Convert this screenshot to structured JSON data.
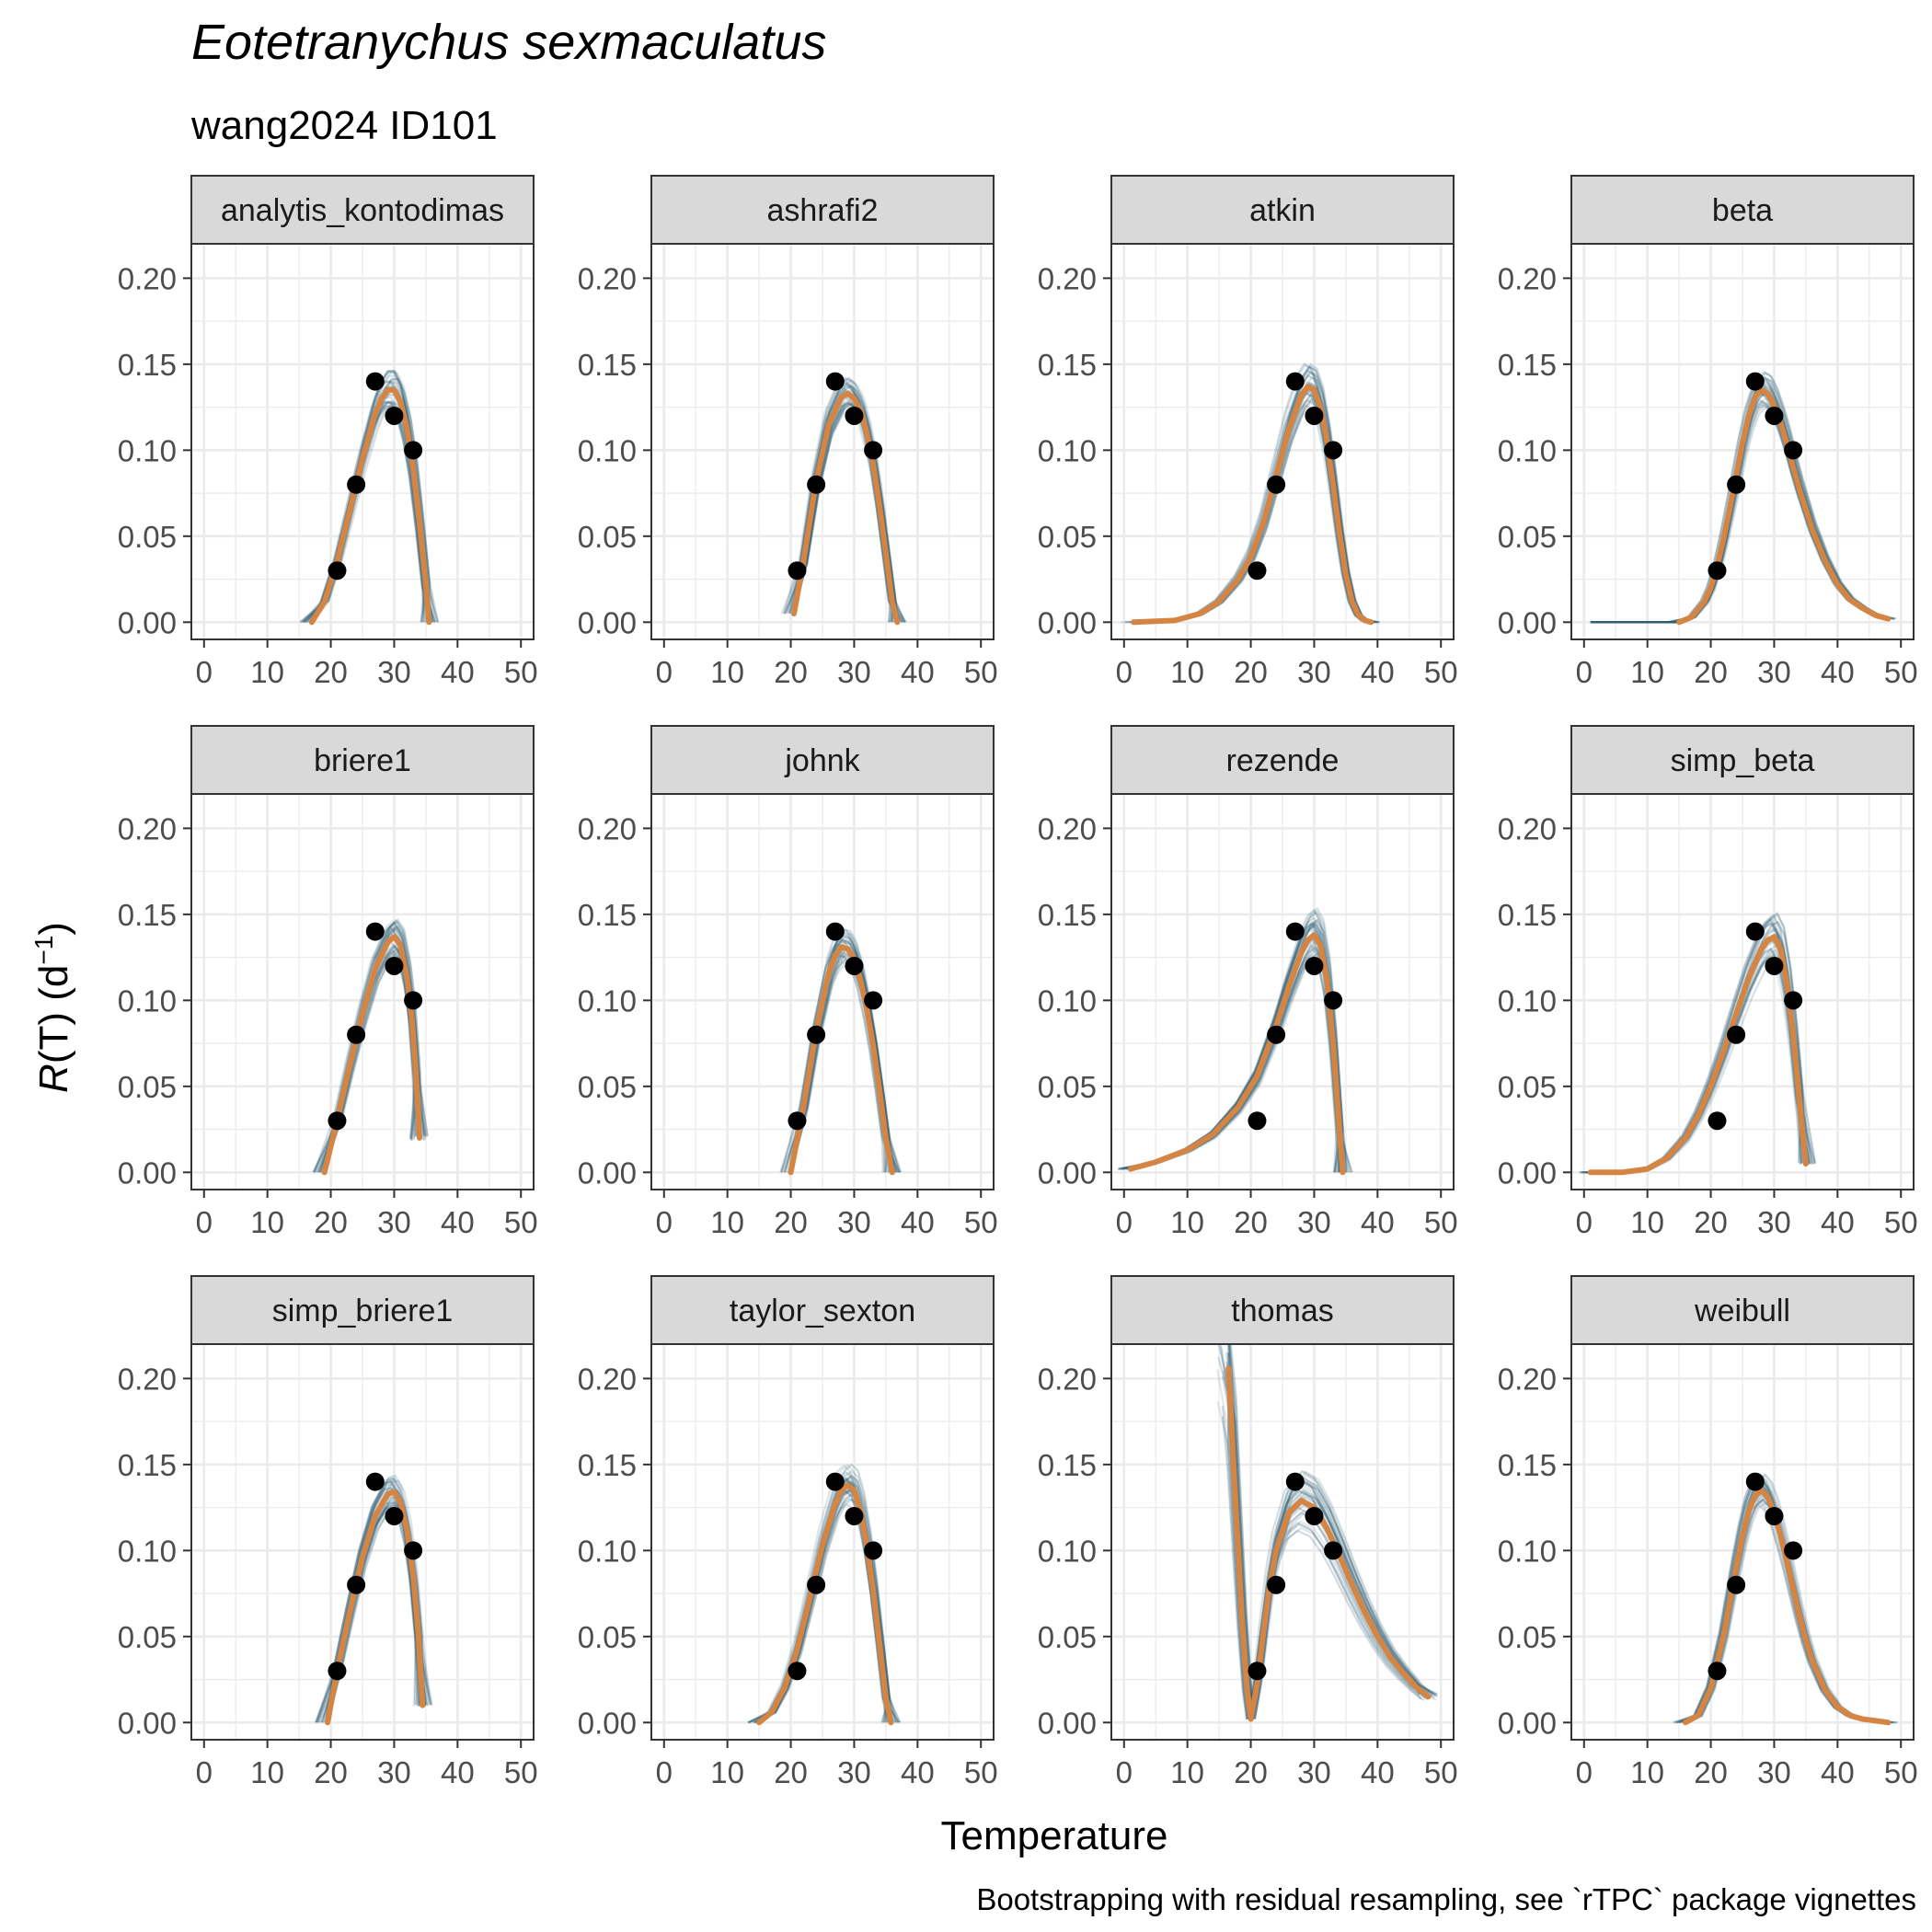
{
  "title": "Eotetranychus sexmaculatus",
  "subtitle": "wang2024 ID101",
  "caption": "Bootstrapping with residual resampling, see `rTPC` package vignettes",
  "colors": {
    "fit_line": "#D58442",
    "bootstrap_lines": "#2F5E73",
    "points": "#000000",
    "strip_background": "#D9D9D9",
    "grid": "#EBEBEB"
  },
  "chart_data": {
    "type": "line",
    "facet_layout": "4 columns x 3 rows",
    "xlabel": "Temperature",
    "ylabel": {
      "italic": "R",
      "text": "(T) (d",
      "superscript": "−1",
      "suffix": ")"
    },
    "xlim": [
      -2,
      52
    ],
    "ylim": [
      -0.01,
      0.22
    ],
    "x_ticks": [
      "0",
      "10",
      "20",
      "30",
      "40",
      "50"
    ],
    "y_ticks": [
      "0.00",
      "0.05",
      "0.10",
      "0.15",
      "0.20"
    ],
    "observed": {
      "x": [
        21,
        24,
        27,
        30,
        33
      ],
      "y": [
        0.03,
        0.08,
        0.14,
        0.12,
        0.1
      ]
    },
    "panels": [
      {
        "name": "analytis_kontodimas",
        "fit": {
          "x": [
            17,
            19,
            21,
            23,
            25,
            27,
            28,
            29,
            30,
            31,
            32,
            33,
            34,
            35,
            35.5
          ],
          "y": [
            0.0,
            0.012,
            0.035,
            0.065,
            0.095,
            0.121,
            0.13,
            0.135,
            0.135,
            0.128,
            0.113,
            0.09,
            0.058,
            0.022,
            0.0
          ]
        },
        "bootstrap_spread": 0.012
      },
      {
        "name": "ashrafi2",
        "fit": {
          "x": [
            20.5,
            22,
            24,
            26,
            28,
            29,
            30,
            31,
            32,
            33,
            34,
            35,
            36,
            36.8
          ],
          "y": [
            0.005,
            0.035,
            0.082,
            0.115,
            0.131,
            0.133,
            0.13,
            0.123,
            0.11,
            0.092,
            0.068,
            0.04,
            0.012,
            0.0
          ]
        },
        "bootstrap_spread": 0.01
      },
      {
        "name": "atkin",
        "fit": {
          "x": [
            1.5,
            8,
            12,
            15,
            18,
            20,
            22,
            24,
            26,
            28,
            29,
            30,
            31,
            32,
            33,
            34,
            35,
            36,
            37,
            38,
            39
          ],
          "y": [
            0.0,
            0.001,
            0.005,
            0.012,
            0.025,
            0.038,
            0.058,
            0.085,
            0.112,
            0.132,
            0.137,
            0.135,
            0.125,
            0.106,
            0.08,
            0.052,
            0.028,
            0.012,
            0.004,
            0.001,
            0.0
          ]
        },
        "bootstrap_spread": 0.014
      },
      {
        "name": "beta",
        "fit": {
          "x": [
            15,
            17,
            19,
            20,
            21,
            22,
            23,
            24,
            25,
            26,
            27,
            28,
            29,
            30,
            31,
            32,
            33,
            34,
            36,
            38,
            40,
            42,
            44,
            46,
            48
          ],
          "y": [
            0.0,
            0.003,
            0.012,
            0.02,
            0.032,
            0.048,
            0.066,
            0.085,
            0.104,
            0.12,
            0.131,
            0.135,
            0.133,
            0.126,
            0.116,
            0.104,
            0.09,
            0.077,
            0.054,
            0.036,
            0.022,
            0.013,
            0.008,
            0.004,
            0.002
          ]
        },
        "flat_start": 1,
        "bootstrap_spread": 0.012
      },
      {
        "name": "briere1",
        "fit": {
          "x": [
            19,
            21,
            23,
            25,
            27,
            29,
            30,
            31,
            32,
            32.8,
            33.5,
            34
          ],
          "y": [
            0.0,
            0.03,
            0.062,
            0.092,
            0.118,
            0.134,
            0.137,
            0.132,
            0.114,
            0.09,
            0.055,
            0.02
          ]
        },
        "bootstrap_spread": 0.012
      },
      {
        "name": "johnk",
        "fit": {
          "x": [
            20,
            22,
            24,
            26,
            27,
            28,
            29,
            30,
            31,
            32,
            33,
            34,
            35,
            36
          ],
          "y": [
            0.0,
            0.038,
            0.082,
            0.116,
            0.126,
            0.131,
            0.13,
            0.124,
            0.112,
            0.095,
            0.074,
            0.048,
            0.02,
            0.0
          ]
        },
        "bootstrap_spread": 0.012
      },
      {
        "name": "rezende",
        "fit": {
          "x": [
            1,
            5,
            10,
            14,
            18,
            21,
            24,
            26,
            28,
            29,
            30,
            31,
            32,
            33,
            34,
            34.5
          ],
          "y": [
            0.002,
            0.006,
            0.013,
            0.022,
            0.038,
            0.056,
            0.085,
            0.108,
            0.128,
            0.135,
            0.138,
            0.132,
            0.112,
            0.075,
            0.025,
            0.0
          ]
        },
        "bootstrap_spread": 0.016
      },
      {
        "name": "simp_beta",
        "fit": {
          "x": [
            1,
            6,
            10,
            13,
            16,
            18,
            20,
            22,
            24,
            26,
            28,
            29,
            30,
            31,
            32,
            33,
            34,
            35
          ],
          "y": [
            0.0,
            0.0,
            0.002,
            0.008,
            0.02,
            0.033,
            0.05,
            0.07,
            0.092,
            0.113,
            0.13,
            0.135,
            0.137,
            0.13,
            0.11,
            0.08,
            0.042,
            0.005
          ]
        },
        "bootstrap_spread": 0.015
      },
      {
        "name": "simp_briere1",
        "fit": {
          "x": [
            19.5,
            21,
            23,
            25,
            27,
            29,
            30,
            31,
            32,
            33,
            33.8,
            34.5
          ],
          "y": [
            0.0,
            0.03,
            0.064,
            0.096,
            0.12,
            0.133,
            0.134,
            0.128,
            0.112,
            0.085,
            0.052,
            0.01
          ]
        },
        "bootstrap_spread": 0.011
      },
      {
        "name": "taylor_sexton",
        "fit": {
          "x": [
            15,
            17,
            19,
            21,
            23,
            25,
            27,
            28,
            29,
            30,
            31,
            32,
            33,
            34,
            35,
            35.8
          ],
          "y": [
            0.0,
            0.006,
            0.02,
            0.042,
            0.072,
            0.103,
            0.127,
            0.135,
            0.138,
            0.135,
            0.123,
            0.103,
            0.077,
            0.046,
            0.014,
            0.0
          ]
        },
        "bootstrap_spread": 0.013
      },
      {
        "name": "thomas",
        "fit": {
          "x": [
            16.5,
            17,
            17.8,
            18.6,
            19.4,
            20,
            21,
            22,
            23,
            24,
            26,
            28,
            30,
            32,
            34,
            36,
            38,
            40,
            42,
            44,
            46,
            48
          ],
          "y": [
            0.206,
            0.17,
            0.115,
            0.062,
            0.02,
            0.002,
            0.022,
            0.052,
            0.08,
            0.1,
            0.122,
            0.129,
            0.125,
            0.113,
            0.097,
            0.08,
            0.064,
            0.05,
            0.038,
            0.029,
            0.021,
            0.015
          ]
        },
        "bootstrap_spread": 0.02
      },
      {
        "name": "weibull",
        "fit": {
          "x": [
            16,
            18,
            20,
            22,
            24,
            25,
            26,
            27,
            28,
            29,
            30,
            31,
            32,
            33,
            34,
            35,
            36,
            38,
            40,
            42,
            44,
            46,
            48
          ],
          "y": [
            0.0,
            0.004,
            0.02,
            0.05,
            0.09,
            0.108,
            0.123,
            0.132,
            0.135,
            0.131,
            0.122,
            0.109,
            0.094,
            0.078,
            0.062,
            0.048,
            0.036,
            0.019,
            0.009,
            0.004,
            0.002,
            0.001,
            0.0
          ]
        },
        "bootstrap_spread": 0.011
      }
    ]
  }
}
